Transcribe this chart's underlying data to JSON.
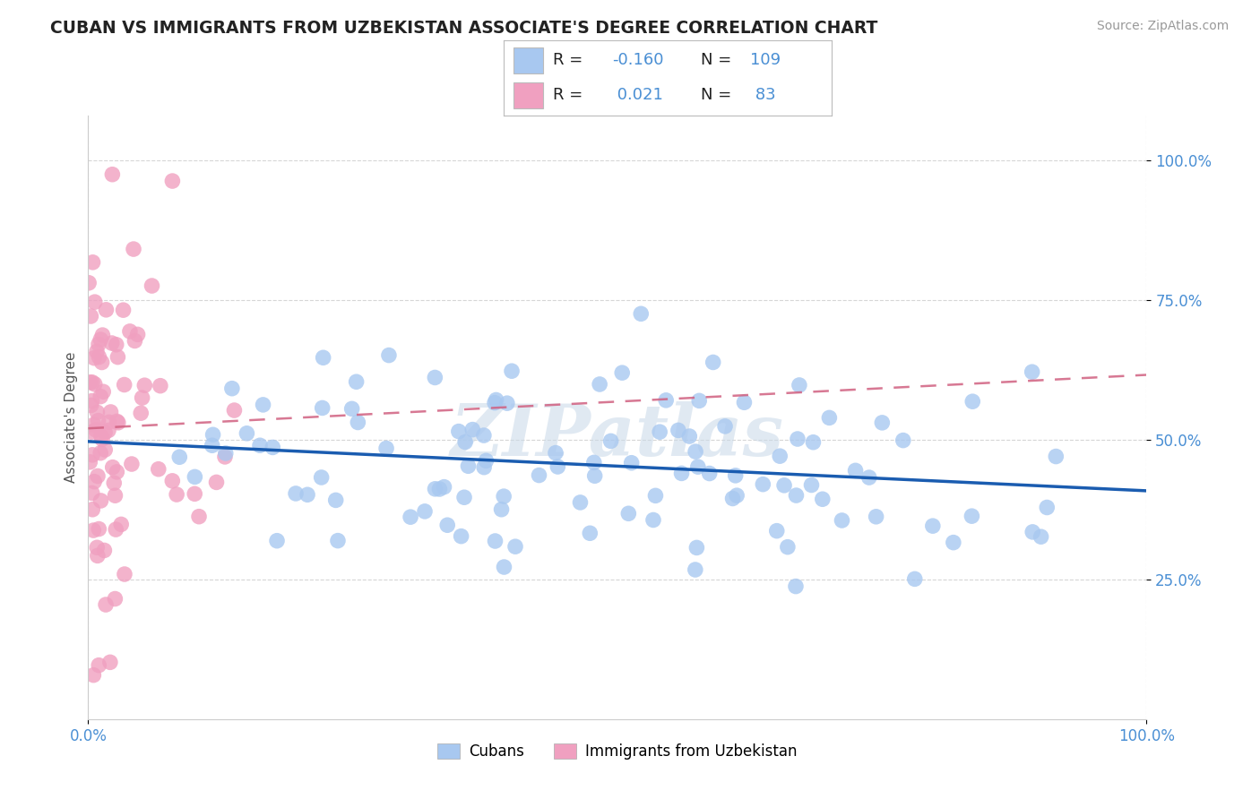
{
  "title": "CUBAN VS IMMIGRANTS FROM UZBEKISTAN ASSOCIATE'S DEGREE CORRELATION CHART",
  "source": "Source: ZipAtlas.com",
  "ylabel": "Associate's Degree",
  "watermark": "ZIPatlas",
  "blue_color": "#4a8fd4",
  "pink_color": "#d4588a",
  "blue_scatter": "#a8c8f0",
  "pink_scatter": "#f0a0c0",
  "trendline_blue": "#1a5cb0",
  "trendline_pink": "#d06080",
  "seed": 42,
  "N_blue": 109,
  "N_pink": 83,
  "R_blue": -0.16,
  "R_pink": 0.021,
  "background": "#ffffff",
  "grid_color": "#cccccc",
  "ytick_color": "#4a8fd4",
  "xtick_color": "#4a8fd4"
}
